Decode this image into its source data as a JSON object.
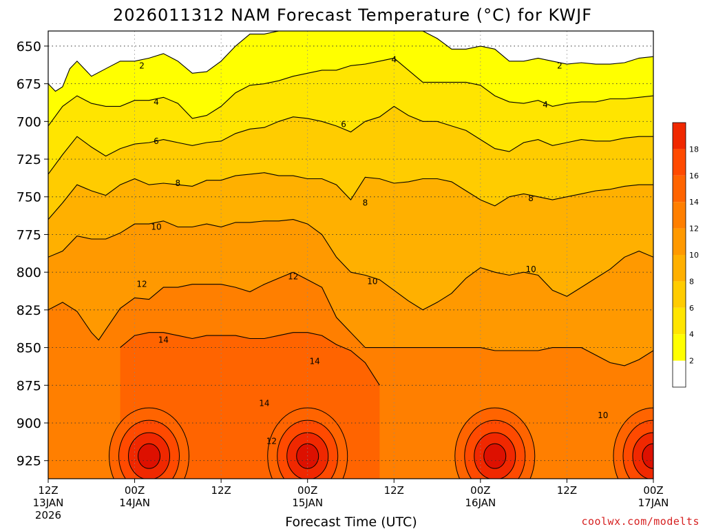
{
  "title": "2026011312 NAM Forecast Temperature (°C) for KWJF",
  "credit": "coolwx.com/modelts",
  "colors": {
    "bands": [
      "#ffffff",
      "#ffff00",
      "#ffe500",
      "#ffcc00",
      "#ffb000",
      "#ff9900",
      "#ff7f00",
      "#ff6400",
      "#ff4a00",
      "#f02800",
      "#dd1000"
    ],
    "ground": "#a0522d",
    "contour": "#000000",
    "top_contour": "#c8007a"
  },
  "chart_data": {
    "type": "heatmap",
    "title": "2026011312 NAM Forecast Temperature (°C) for KWJF",
    "xlabel": "Forecast Time (UTC)",
    "ylabel": "",
    "y_scale": "pressure (hPa), inverted",
    "ylim": [
      937,
      640
    ],
    "y_ticks": [
      650,
      675,
      700,
      725,
      750,
      775,
      800,
      825,
      850,
      875,
      900,
      925
    ],
    "x_ticks": [
      {
        "hour": 0,
        "label": "12Z",
        "date": "13JAN",
        "year": "2026"
      },
      {
        "hour": 12,
        "label": "00Z",
        "date": "14JAN",
        "year": ""
      },
      {
        "hour": 24,
        "label": "12Z",
        "date": "",
        "year": ""
      },
      {
        "hour": 36,
        "label": "00Z",
        "date": "15JAN",
        "year": ""
      },
      {
        "hour": 48,
        "label": "12Z",
        "date": "",
        "year": ""
      },
      {
        "hour": 60,
        "label": "00Z",
        "date": "16JAN",
        "year": ""
      },
      {
        "hour": 72,
        "label": "12Z",
        "date": "",
        "year": ""
      },
      {
        "hour": 84,
        "label": "00Z",
        "date": "17JAN",
        "year": ""
      }
    ],
    "xlim": [
      0,
      84
    ],
    "grid": true,
    "colorbar": {
      "levels": [
        2,
        4,
        6,
        8,
        10,
        12,
        14,
        16,
        18
      ],
      "max": 20
    },
    "contours": [
      {
        "level": 2,
        "hours": [
          0,
          1,
          2,
          3,
          4,
          6,
          8,
          10,
          12,
          14,
          16,
          18,
          20,
          22,
          24,
          26,
          28,
          30,
          32,
          36,
          40,
          42,
          46,
          50,
          52,
          54,
          56,
          58,
          60,
          62,
          64,
          66,
          68,
          70,
          72,
          74,
          76,
          78,
          80,
          82,
          84
        ],
        "pressures": [
          675,
          680,
          677,
          665,
          660,
          670,
          665,
          660,
          660,
          658,
          655,
          660,
          668,
          667,
          660,
          650,
          642,
          642,
          640,
          640,
          640,
          640,
          640,
          640,
          640,
          645,
          652,
          652,
          650,
          652,
          660,
          660,
          658,
          660,
          662,
          661,
          662,
          662,
          661,
          658,
          657
        ]
      },
      {
        "level": 4,
        "hours": [
          0,
          2,
          4,
          6,
          8,
          10,
          12,
          14,
          16,
          18,
          20,
          22,
          24,
          26,
          28,
          30,
          32,
          34,
          36,
          38,
          40,
          42,
          44,
          46,
          48,
          50,
          52,
          54,
          56,
          58,
          60,
          62,
          64,
          66,
          68,
          70,
          72,
          74,
          76,
          78,
          80,
          82,
          84
        ],
        "pressures": [
          703,
          690,
          683,
          688,
          690,
          690,
          686,
          686,
          684,
          688,
          698,
          696,
          690,
          681,
          676,
          675,
          673,
          670,
          668,
          666,
          666,
          663,
          662,
          660,
          658,
          666,
          674,
          674,
          674,
          674,
          676,
          683,
          687,
          688,
          686,
          690,
          688,
          687,
          687,
          685,
          685,
          684,
          683
        ]
      },
      {
        "level": 6,
        "hours": [
          0,
          2,
          4,
          6,
          8,
          10,
          12,
          14,
          16,
          18,
          20,
          22,
          24,
          26,
          28,
          30,
          32,
          34,
          36,
          38,
          40,
          42,
          44,
          46,
          48,
          50,
          52,
          54,
          56,
          58,
          60,
          62,
          64,
          66,
          68,
          70,
          72,
          74,
          76,
          78,
          80,
          82,
          84
        ],
        "pressures": [
          735,
          722,
          710,
          717,
          723,
          718,
          715,
          714,
          712,
          714,
          716,
          714,
          713,
          708,
          705,
          704,
          700,
          697,
          698,
          700,
          703,
          707,
          700,
          697,
          690,
          696,
          700,
          700,
          703,
          706,
          712,
          718,
          720,
          714,
          712,
          716,
          714,
          712,
          713,
          713,
          711,
          710,
          710
        ]
      },
      {
        "level": 8,
        "hours": [
          0,
          2,
          4,
          6,
          8,
          10,
          12,
          14,
          16,
          18,
          20,
          22,
          24,
          26,
          28,
          30,
          32,
          34,
          36,
          38,
          40,
          42,
          44,
          46,
          48,
          50,
          52,
          54,
          56,
          58,
          60,
          62,
          64,
          66,
          68,
          70,
          72,
          74,
          76,
          78,
          80,
          82,
          84
        ],
        "pressures": [
          765,
          754,
          742,
          746,
          749,
          742,
          738,
          742,
          741,
          742,
          743,
          739,
          739,
          736,
          735,
          734,
          736,
          736,
          738,
          738,
          742,
          752,
          737,
          738,
          741,
          740,
          738,
          738,
          740,
          746,
          752,
          756,
          750,
          748,
          750,
          752,
          750,
          748,
          746,
          745,
          743,
          742,
          742
        ]
      },
      {
        "level": 10,
        "hours": [
          0,
          2,
          4,
          6,
          8,
          10,
          12,
          14,
          16,
          18,
          20,
          22,
          24,
          26,
          28,
          30,
          32,
          34,
          36,
          38,
          40,
          42,
          44,
          46,
          48,
          50,
          52,
          54,
          56,
          58,
          60,
          62,
          64,
          66,
          68,
          70,
          72,
          74,
          76,
          78,
          80,
          82,
          84
        ],
        "pressures": [
          790,
          786,
          776,
          778,
          778,
          774,
          768,
          768,
          766,
          770,
          770,
          768,
          770,
          767,
          767,
          766,
          766,
          765,
          768,
          775,
          790,
          800,
          802,
          805,
          812,
          819,
          825,
          820,
          814,
          804,
          797,
          800,
          802,
          800,
          802,
          812,
          816,
          810,
          804,
          798,
          790,
          786,
          790
        ]
      },
      {
        "level": 12,
        "hours": [
          0,
          2,
          4,
          6,
          7,
          8,
          10,
          12,
          14,
          16,
          18,
          20,
          22,
          24,
          26,
          28,
          30,
          32,
          34,
          36,
          38,
          40,
          44,
          48,
          56,
          60,
          62,
          64,
          66,
          68,
          70,
          72,
          74,
          76,
          78,
          80,
          82,
          84
        ],
        "pressures": [
          825,
          820,
          826,
          840,
          845,
          838,
          824,
          817,
          818,
          810,
          810,
          808,
          808,
          808,
          810,
          813,
          808,
          804,
          800,
          805,
          810,
          830,
          850,
          850,
          850,
          850,
          852,
          852,
          852,
          852,
          850,
          850,
          850,
          855,
          860,
          862,
          858,
          852
        ]
      },
      {
        "level": 14,
        "hours": [
          10,
          12,
          14,
          16,
          18,
          20,
          22,
          24,
          26,
          28,
          30,
          32,
          34,
          36,
          38,
          40,
          42,
          44,
          46
        ],
        "pressures": [
          850,
          842,
          840,
          840,
          842,
          844,
          842,
          842,
          842,
          844,
          844,
          842,
          840,
          840,
          842,
          848,
          852,
          860,
          875
        ]
      }
    ],
    "annotations": [
      {
        "hour": 13,
        "pressure": 663,
        "text": "2"
      },
      {
        "hour": 48,
        "pressure": 659,
        "text": "4"
      },
      {
        "hour": 71,
        "pressure": 663,
        "text": "2"
      },
      {
        "hour": 15,
        "pressure": 687,
        "text": "4"
      },
      {
        "hour": 69,
        "pressure": 689,
        "text": "4"
      },
      {
        "hour": 41,
        "pressure": 702,
        "text": "6"
      },
      {
        "hour": 15,
        "pressure": 713,
        "text": "6"
      },
      {
        "hour": 18,
        "pressure": 741,
        "text": "8"
      },
      {
        "hour": 44,
        "pressure": 754,
        "text": "8"
      },
      {
        "hour": 67,
        "pressure": 751,
        "text": "8"
      },
      {
        "hour": 15,
        "pressure": 770,
        "text": "10"
      },
      {
        "hour": 45,
        "pressure": 806,
        "text": "10"
      },
      {
        "hour": 67,
        "pressure": 798,
        "text": "10"
      },
      {
        "hour": 77,
        "pressure": 895,
        "text": "10"
      },
      {
        "hour": 13,
        "pressure": 808,
        "text": "12"
      },
      {
        "hour": 34,
        "pressure": 803,
        "text": "12"
      },
      {
        "hour": 31,
        "pressure": 912,
        "text": "12"
      },
      {
        "hour": 16,
        "pressure": 845,
        "text": "14"
      },
      {
        "hour": 37,
        "pressure": 859,
        "text": "14"
      },
      {
        "hour": 30,
        "pressure": 887,
        "text": "14"
      }
    ],
    "warm_cores": [
      {
        "hour": 14,
        "pressure": 922,
        "max_c": 20
      },
      {
        "hour": 36,
        "pressure": 922,
        "max_c": 20
      },
      {
        "hour": 62,
        "pressure": 922,
        "max_c": 20
      },
      {
        "hour": 84,
        "pressure": 922,
        "max_c": 20
      }
    ],
    "ground_pressure": 937
  }
}
